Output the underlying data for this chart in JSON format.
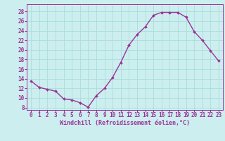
{
  "x": [
    0,
    1,
    2,
    3,
    4,
    5,
    6,
    7,
    8,
    9,
    10,
    11,
    12,
    13,
    14,
    15,
    16,
    17,
    18,
    19,
    20,
    21,
    22,
    23
  ],
  "y": [
    13.5,
    12.2,
    11.8,
    11.4,
    9.8,
    9.6,
    9.0,
    8.1,
    10.5,
    12.0,
    14.3,
    17.4,
    21.0,
    23.2,
    24.8,
    27.2,
    27.8,
    27.8,
    27.8,
    26.8,
    23.8,
    22.0,
    19.8,
    17.7
  ],
  "line_color": "#993399",
  "marker": "D",
  "markersize": 2,
  "linewidth": 1.0,
  "xlabel": "Windchill (Refroidissement éolien,°C)",
  "xlabel_fontsize": 6.0,
  "xtick_labels": [
    "0",
    "1",
    "2",
    "3",
    "4",
    "5",
    "6",
    "7",
    "8",
    "9",
    "10",
    "11",
    "12",
    "13",
    "14",
    "15",
    "16",
    "17",
    "18",
    "19",
    "20",
    "21",
    "22",
    "23"
  ],
  "ytick_labels": [
    "8",
    "10",
    "12",
    "14",
    "16",
    "18",
    "20",
    "22",
    "24",
    "26",
    "28"
  ],
  "ytick_values": [
    8,
    10,
    12,
    14,
    16,
    18,
    20,
    22,
    24,
    26,
    28
  ],
  "ylim": [
    7.5,
    29.5
  ],
  "xlim": [
    -0.5,
    23.5
  ],
  "grid_color": "#aadddd",
  "bg_color": "#cceeee",
  "tick_color": "#993399",
  "tick_fontsize": 5.5
}
